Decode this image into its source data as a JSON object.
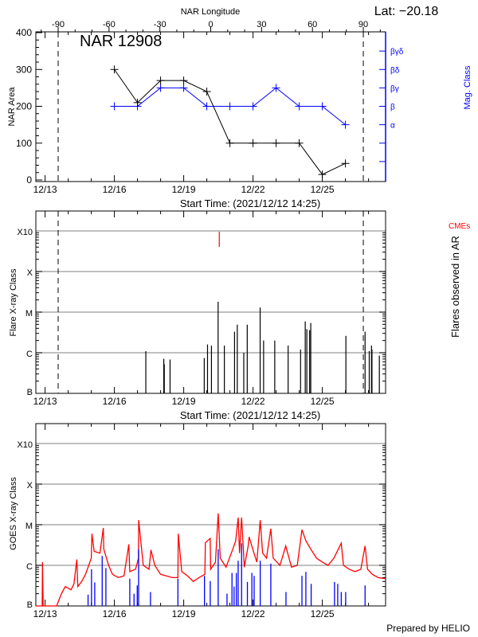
{
  "header": {
    "latitude_label": "Lat: −20.18",
    "region_label": "NAR 12908"
  },
  "footer": {
    "credit": "Prepared by HELIO"
  },
  "colors": {
    "area": "#000000",
    "mag_class": "#0000ff",
    "cme": "#ff0000",
    "goes_long": "#ff0000",
    "goes_short": "#0000ff",
    "grid": "#999999"
  },
  "chart_data": [
    {
      "type": "line",
      "top_xlabel": "NAR Longitude",
      "top_xticks": [
        -90,
        -60,
        -30,
        0,
        30,
        60,
        90
      ],
      "xlabel": "Start Time: (2021/12/12 14:25)",
      "xrange": [
        "12/12 14:25",
        "12/27 17:45"
      ],
      "xtick_labels": [
        "12/13",
        "12/16",
        "12/19",
        "12/22",
        "12/25"
      ],
      "limb_markers_longitude": [
        -90,
        90
      ],
      "ylabel": "NAR Area",
      "ylim": [
        0,
        400
      ],
      "yticks": [
        0,
        100,
        200,
        300,
        400
      ],
      "y2label": "Mag. Class",
      "y2_tick_labels": [
        "α",
        "β",
        "βγ",
        "βδ",
        "βγδ"
      ],
      "series": [
        {
          "key": "area",
          "x": [
            "12/16 00:00",
            "12/17 00:00",
            "12/18 00:00",
            "12/19 00:00",
            "12/20 00:00",
            "12/21 00:00",
            "12/22 00:00",
            "12/23 00:00",
            "12/24 00:00",
            "12/25 00:00",
            "12/26 00:00"
          ],
          "values": [
            300,
            210,
            270,
            270,
            240,
            100,
            100,
            100,
            100,
            15,
            45
          ]
        },
        {
          "key": "mag_class",
          "x": [
            "12/16 00:00",
            "12/17 00:00",
            "12/18 00:00",
            "12/19 00:00",
            "12/20 00:00",
            "12/21 00:00",
            "12/22 00:00",
            "12/23 00:00",
            "12/24 00:00",
            "12/25 00:00",
            "12/26 00:00"
          ],
          "values": [
            "β",
            "β",
            "βγ",
            "βγ",
            "β",
            "β",
            "β",
            "βγ",
            "β",
            "β",
            "α"
          ]
        }
      ]
    },
    {
      "type": "bar",
      "xlabel": "Start Time: (2021/12/12 14:25)",
      "xrange": [
        "12/12 14:25",
        "12/27 17:45"
      ],
      "xtick_labels": [
        "12/13",
        "12/16",
        "12/19",
        "12/22",
        "12/25"
      ],
      "ylabel": "Flare X-ray Class",
      "y2label": "Flares observed in AR",
      "yscale": "log",
      "yticks": [
        "B",
        "C",
        "M",
        "X",
        "X10"
      ],
      "grid": true,
      "cme_label": "CMEs",
      "cmes": [
        "12/20 12:58"
      ],
      "flares": [
        [
          "12/17 08:40",
          "C1.1"
        ],
        [
          "12/18 03:20",
          "B7.1"
        ],
        [
          "12/18 03:50",
          "B5.2"
        ],
        [
          "12/18 09:50",
          "B6.8"
        ],
        [
          "12/19 21:20",
          "B7.4"
        ],
        [
          "12/20 00:45",
          "C1.6"
        ],
        [
          "12/20 04:50",
          "C1.5"
        ],
        [
          "12/20 11:45",
          "M1.8"
        ],
        [
          "12/20 18:15",
          "C1.5"
        ],
        [
          "12/21 04:50",
          "C3.3"
        ],
        [
          "12/21 07:40",
          "C4.9"
        ],
        [
          "12/21 14:25",
          "C1.0"
        ],
        [
          "12/21 18:00",
          "C4.9"
        ],
        [
          "12/22 07:25",
          "M1.3"
        ],
        [
          "12/22 11:00",
          "C2.0"
        ],
        [
          "12/22 22:35",
          "C2.0"
        ],
        [
          "12/23 12:30",
          "C1.5"
        ],
        [
          "12/24 01:25",
          "C1.2"
        ],
        [
          "12/24 06:15",
          "C5.9"
        ],
        [
          "12/24 07:55",
          "C3.8"
        ],
        [
          "12/24 10:50",
          "C3.6"
        ],
        [
          "12/24 12:00",
          "C5.4"
        ],
        [
          "12/26 00:30",
          "C2.6"
        ],
        [
          "12/26 20:25",
          "C3.3"
        ],
        [
          "12/27 00:45",
          "C1.1"
        ],
        [
          "12/27 03:05",
          "C1.5"
        ],
        [
          "12/27 03:35",
          "C1.2"
        ],
        [
          "12/27 11:15",
          "B8.5"
        ]
      ]
    },
    {
      "type": "line",
      "xrange": [
        "12/12 14:25",
        "12/27 17:45"
      ],
      "xtick_labels": [
        "12/13",
        "12/16",
        "12/19",
        "12/22",
        "12/25"
      ],
      "ylabel": "GOES X-ray Class",
      "yscale": "log",
      "yticks": [
        "B",
        "C",
        "M",
        "X",
        "X10"
      ],
      "grid": true,
      "long_channel": [
        [
          "12/12 14:25",
          "A5"
        ],
        [
          "12/12 21:00",
          "A5"
        ],
        [
          "12/12 21:20",
          "C1.2"
        ],
        [
          "12/12 22:00",
          "A8"
        ],
        [
          "12/13 12:00",
          "A6"
        ],
        [
          "12/13 17:00",
          "B2.0"
        ],
        [
          "12/13 21:00",
          "B3.0"
        ],
        [
          "12/14 03:00",
          "B2.5"
        ],
        [
          "12/14 06:00",
          "B3.5"
        ],
        [
          "12/14 09:00",
          "C1.4"
        ],
        [
          "12/14 10:00",
          "B3.0"
        ],
        [
          "12/14 14:00",
          "B4.0"
        ],
        [
          "12/14 18:00",
          "B6.0"
        ],
        [
          "12/15 00:00",
          "C1.5"
        ],
        [
          "12/15 00:40",
          "C6.0"
        ],
        [
          "12/15 03:00",
          "C2.2"
        ],
        [
          "12/15 09:00",
          "C2.0"
        ],
        [
          "12/15 12:30",
          "C8.3"
        ],
        [
          "12/15 13:00",
          "C2.5"
        ],
        [
          "12/15 18:00",
          "C1.0"
        ],
        [
          "12/15 22:00",
          "B6.0"
        ],
        [
          "12/16 04:00",
          "B5.0"
        ],
        [
          "12/16 10:00",
          "B5.5"
        ],
        [
          "12/16 15:00",
          "C3.3"
        ],
        [
          "12/16 16:00",
          "B7.0"
        ],
        [
          "12/16 22:00",
          "B8.0"
        ],
        [
          "12/17 01:00",
          "C1.5"
        ],
        [
          "12/17 01:15",
          "M1.3"
        ],
        [
          "12/17 06:00",
          "C1.0"
        ],
        [
          "12/17 12:00",
          "B8.0"
        ],
        [
          "12/17 14:00",
          "C2.4"
        ],
        [
          "12/17 18:00",
          "C1.0"
        ],
        [
          "12/18 00:00",
          "B6.0"
        ],
        [
          "12/18 06:00",
          "B5.5"
        ],
        [
          "12/18 12:00",
          "B5.0"
        ],
        [
          "12/18 18:00",
          "B5.0"
        ],
        [
          "12/18 18:20",
          "C6.0"
        ],
        [
          "12/18 22:00",
          "B7.0"
        ],
        [
          "12/19 04:00",
          "B5.5"
        ],
        [
          "12/19 10:00",
          "B4.0"
        ],
        [
          "12/19 16:00",
          "B5.0"
        ],
        [
          "12/19 22:00",
          "B6.0"
        ],
        [
          "12/19 22:30",
          "C3.6"
        ],
        [
          "12/20 03:30",
          "C4.6"
        ],
        [
          "12/20 04:00",
          "B8.0"
        ],
        [
          "12/20 09:00",
          "C1.2"
        ],
        [
          "12/20 11:50",
          "M1.9"
        ],
        [
          "12/20 14:00",
          "C1.5"
        ],
        [
          "12/20 20:00",
          "B9.0"
        ],
        [
          "12/21 03:00",
          "C2.5"
        ],
        [
          "12/21 06:00",
          "C4.0"
        ],
        [
          "12/21 08:35",
          "M1.5"
        ],
        [
          "12/21 10:00",
          "C2.0"
        ],
        [
          "12/21 12:10",
          "M1.5"
        ],
        [
          "12/21 15:00",
          "B9.0"
        ],
        [
          "12/21 19:00",
          "C3.0"
        ],
        [
          "12/21 20:00",
          "C5.0"
        ],
        [
          "12/22 01:00",
          "C2.0"
        ],
        [
          "12/22 04:00",
          "C1.2"
        ],
        [
          "12/22 07:30",
          "M1.3"
        ],
        [
          "12/22 10:00",
          "C2.0"
        ],
        [
          "12/22 14:00",
          "C1.5"
        ],
        [
          "12/22 18:30",
          "C8.0"
        ],
        [
          "12/22 21:00",
          "C1.5"
        ],
        [
          "12/23 04:00",
          "C1.0"
        ],
        [
          "12/23 10:00",
          "C3.0"
        ],
        [
          "12/23 16:00",
          "B9.0"
        ],
        [
          "12/23 22:00",
          "C1.0"
        ],
        [
          "12/24 02:50",
          "C7.5"
        ],
        [
          "12/24 07:00",
          "C4.0"
        ],
        [
          "12/24 12:00",
          "C2.5"
        ],
        [
          "12/24 18:00",
          "C1.5"
        ],
        [
          "12/25 00:00",
          "C1.2"
        ],
        [
          "12/25 06:00",
          "C1.0"
        ],
        [
          "12/25 12:00",
          "C1.5"
        ],
        [
          "12/25 19:40",
          "C3.5"
        ],
        [
          "12/25 22:00",
          "C1.0"
        ],
        [
          "12/26 04:00",
          "B8.0"
        ],
        [
          "12/26 10:00",
          "B7.0"
        ],
        [
          "12/26 16:00",
          "B8.0"
        ],
        [
          "12/26 20:25",
          "C3.0"
        ],
        [
          "12/26 23:00",
          "B8.0"
        ],
        [
          "12/27 04:00",
          "B6.0"
        ],
        [
          "12/27 10:00",
          "B5.0"
        ],
        [
          "12/27 17:45",
          "B4.7"
        ]
      ],
      "short_channel": [
        [
          "12/14 20:40",
          "B1.9"
        ],
        [
          "12/15 00:15",
          "B8.0"
        ],
        [
          "12/15 03:35",
          "B3.8"
        ],
        [
          "12/15 11:20",
          "C1.7"
        ],
        [
          "12/15 15:10",
          "B8.6"
        ],
        [
          "12/16 16:00",
          "B4.7"
        ],
        [
          "12/16 20:25",
          "B2.0"
        ],
        [
          "12/16 23:45",
          "B3.2"
        ],
        [
          "12/17 01:10",
          "C2.5"
        ],
        [
          "12/17 13:30",
          "B2.2"
        ],
        [
          "12/18 18:00",
          "B4.7"
        ],
        [
          "12/19 21:35",
          "B5.5"
        ],
        [
          "12/20 03:35",
          "B4.1"
        ],
        [
          "12/20 11:50",
          "C2.5"
        ],
        [
          "12/20 21:00",
          "B2.0"
        ],
        [
          "12/21 02:10",
          "B6.5"
        ],
        [
          "12/21 04:20",
          "B3.0"
        ],
        [
          "12/21 06:40",
          "B6.5"
        ],
        [
          "12/21 08:35",
          "C1.3"
        ],
        [
          "12/21 12:10",
          "C3.5"
        ],
        [
          "12/21 18:10",
          "B3.9"
        ],
        [
          "12/21 22:50",
          "B6.5"
        ],
        [
          "12/22 01:10",
          "B5.5"
        ],
        [
          "12/22 07:30",
          "C1.3"
        ],
        [
          "12/22 18:30",
          "C1.1"
        ],
        [
          "12/23 10:15",
          "B2.2"
        ],
        [
          "12/24 02:50",
          "B5.5"
        ],
        [
          "12/24 06:55",
          "B6.9"
        ],
        [
          "12/24 12:25",
          "B3.5"
        ],
        [
          "12/25 12:40",
          "B3.9"
        ],
        [
          "12/25 16:00",
          "B3.5"
        ],
        [
          "12/25 19:40",
          "B2.2"
        ],
        [
          "12/26 00:15",
          "B2.2"
        ],
        [
          "12/26 20:25",
          "B3.2"
        ]
      ]
    }
  ]
}
